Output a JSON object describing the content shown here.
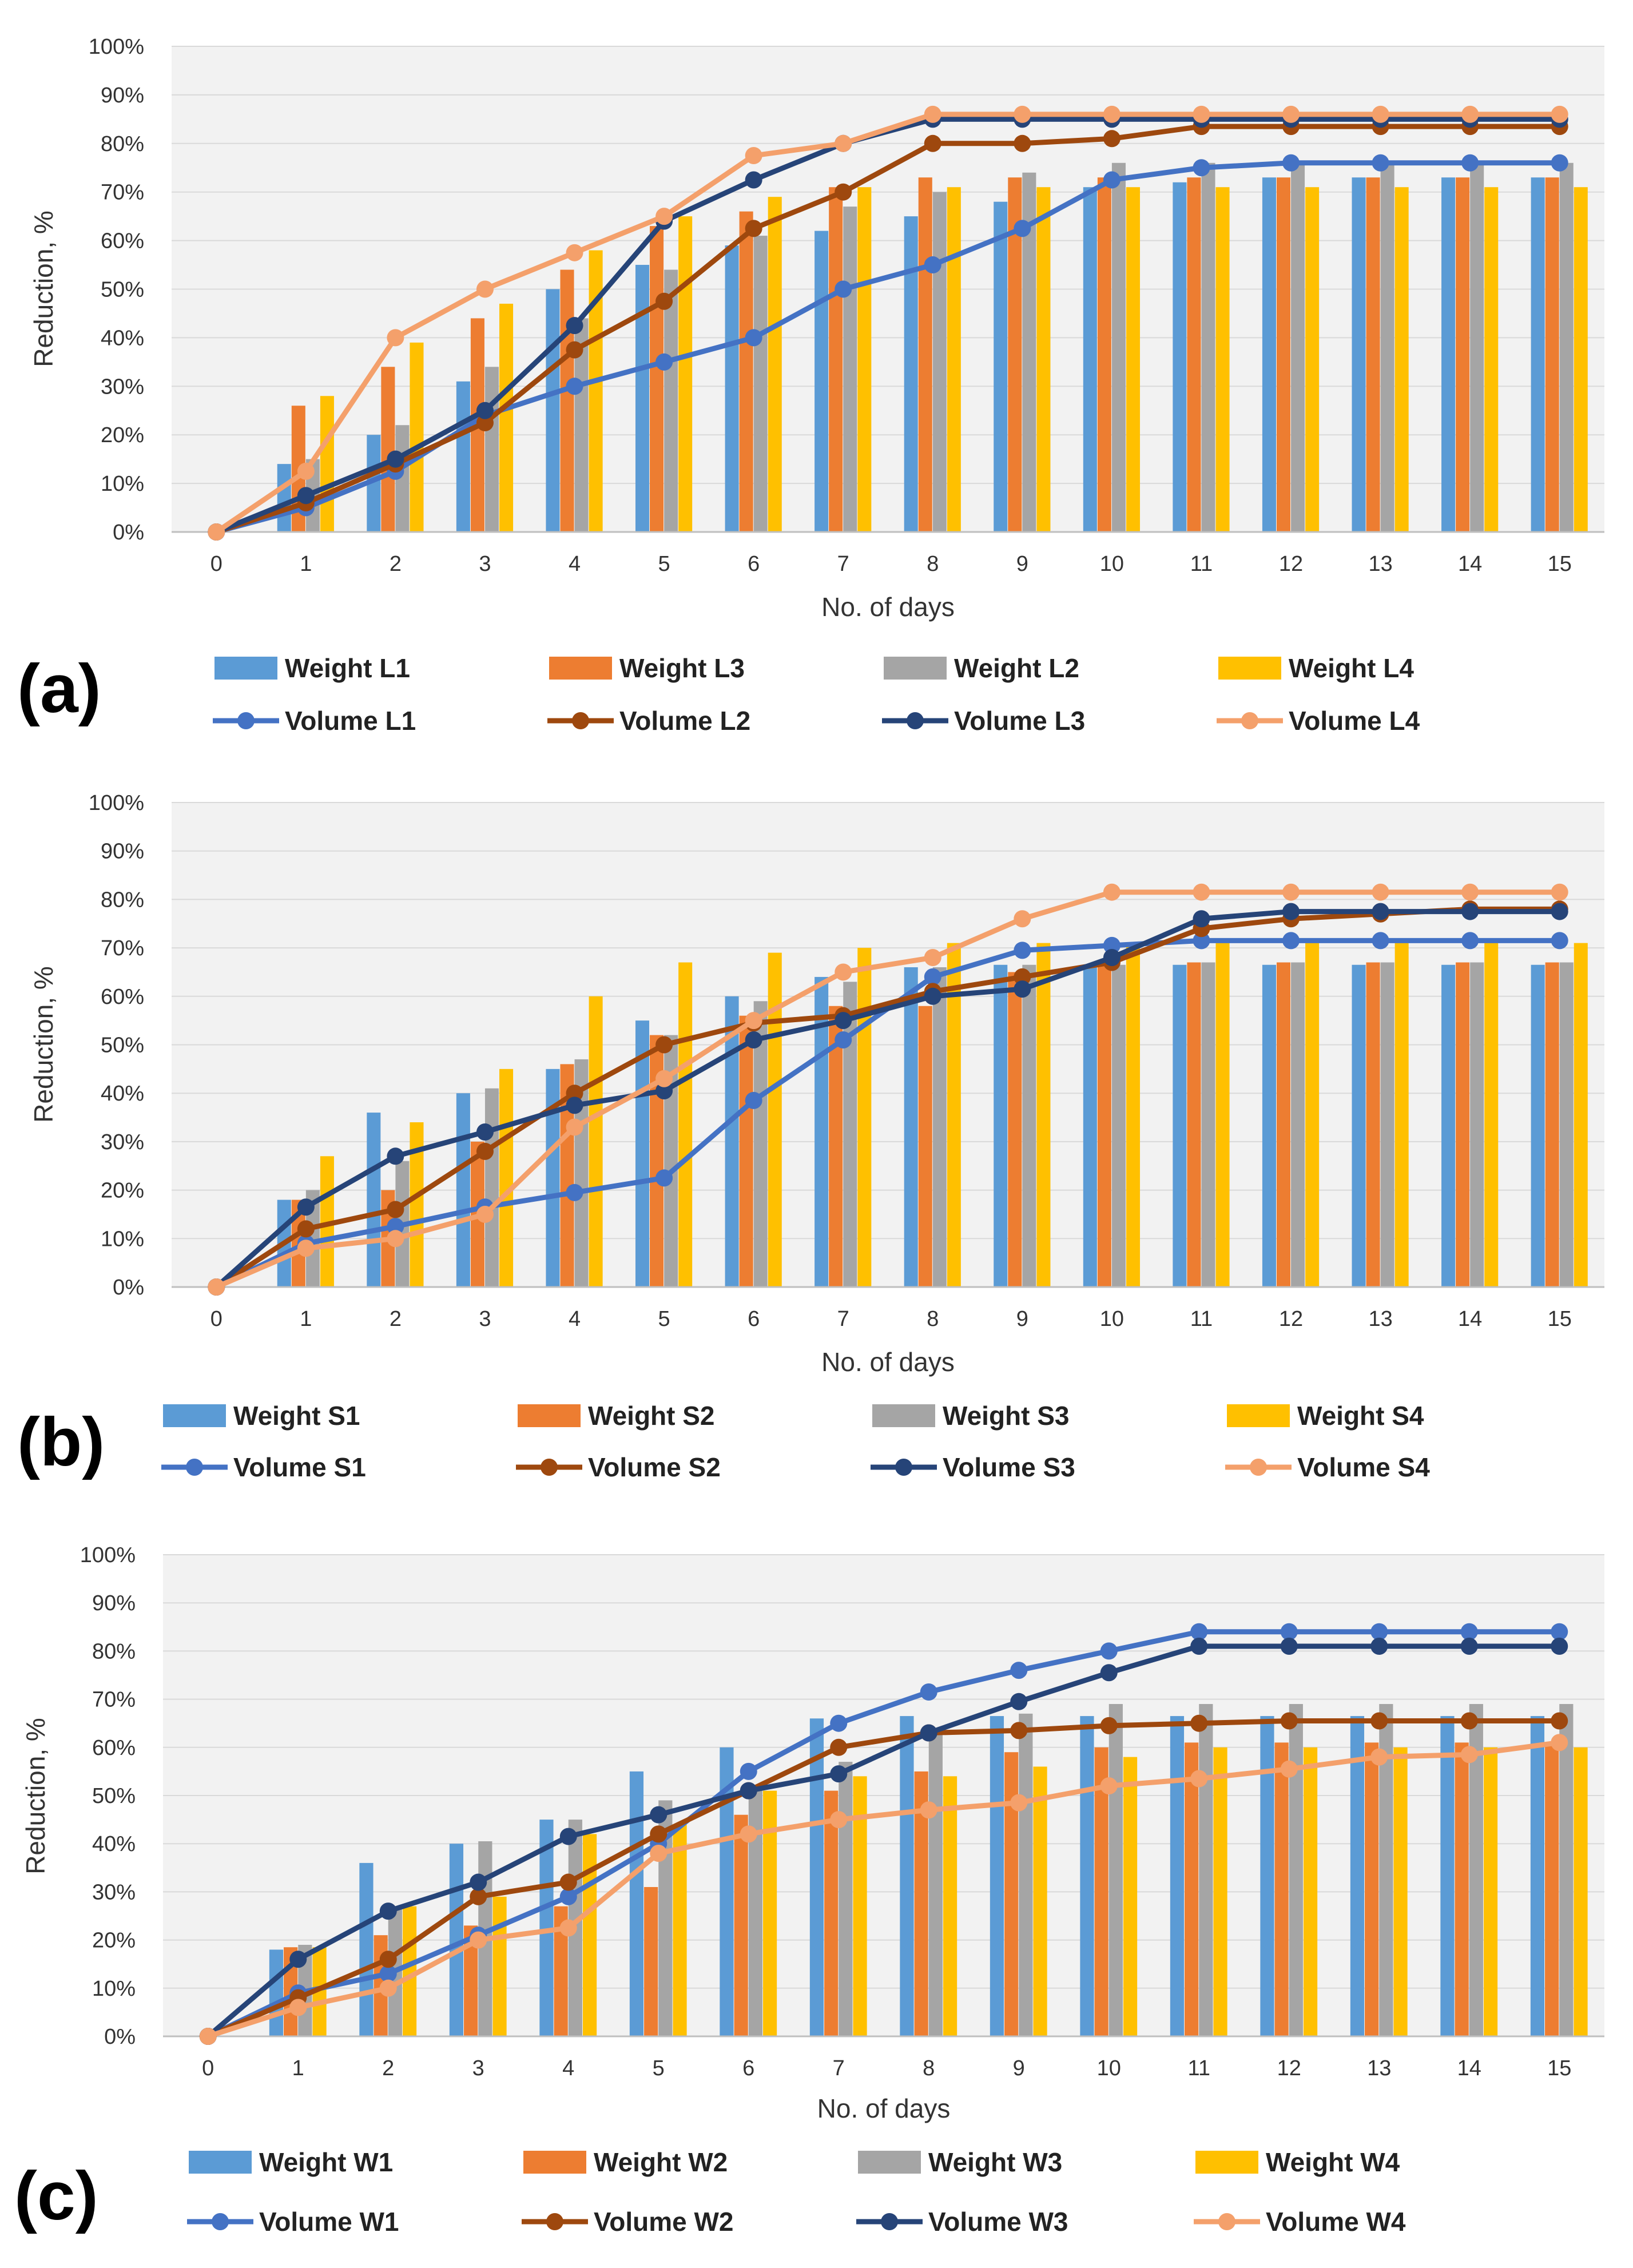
{
  "figure": {
    "panels": [
      "(a)",
      "(b)",
      "(c)"
    ]
  },
  "chart_data": [
    {
      "type": "bar",
      "panel_label": "(a)",
      "title": "",
      "xlabel": "No. of days",
      "ylabel": "Reduction, %",
      "ylim": [
        0,
        100
      ],
      "grid": true,
      "legend_position": "bottom",
      "categories": [
        "0",
        "1",
        "2",
        "3",
        "4",
        "5",
        "6",
        "7",
        "8",
        "9",
        "10",
        "11",
        "12",
        "13",
        "14",
        "15"
      ],
      "y_ticks": [
        "0%",
        "10%",
        "20%",
        "30%",
        "40%",
        "50%",
        "60%",
        "70%",
        "80%",
        "90%",
        "100%"
      ],
      "series": [
        {
          "name": "Weight  L1",
          "kind": "bar",
          "color": "#5B9BD5",
          "values": [
            0,
            14,
            20,
            31,
            50,
            55,
            59,
            62,
            65,
            68,
            71,
            72,
            73,
            73,
            73,
            73
          ]
        },
        {
          "name": "Weight L3",
          "kind": "bar",
          "color": "#ED7D31",
          "values": [
            0,
            26,
            34,
            44,
            54,
            63,
            66,
            71,
            73,
            73,
            73,
            73,
            73,
            73,
            73,
            73
          ]
        },
        {
          "name": "Weight  L2",
          "kind": "bar",
          "color": "#A5A5A5",
          "values": [
            0,
            15,
            22,
            34,
            44,
            54,
            61,
            67,
            70,
            74,
            76,
            76,
            76,
            76,
            76,
            76
          ]
        },
        {
          "name": "Weight  L4",
          "kind": "bar",
          "color": "#FFC000",
          "values": [
            0,
            28,
            39,
            47,
            58,
            65,
            69,
            71,
            71,
            71,
            71,
            71,
            71,
            71,
            71,
            71
          ]
        },
        {
          "name": "Volume  L1",
          "kind": "line",
          "color": "#4472C4",
          "values": [
            0,
            5,
            12.5,
            24,
            30,
            35,
            40,
            50,
            55,
            62.5,
            72.5,
            75,
            76,
            76,
            76,
            76
          ]
        },
        {
          "name": "Volume L2",
          "kind": "line",
          "color": "#9E480E",
          "values": [
            0,
            6,
            14,
            22.5,
            37.5,
            47.5,
            62.5,
            70,
            80,
            80,
            81,
            83.5,
            83.5,
            83.5,
            83.5,
            83.5
          ]
        },
        {
          "name": "Volume L3",
          "kind": "line",
          "color": "#264478",
          "values": [
            0,
            7.5,
            15,
            25,
            42.5,
            64,
            72.5,
            80,
            85,
            85,
            85,
            85,
            85,
            85,
            85,
            85
          ]
        },
        {
          "name": "Volume L4",
          "kind": "line",
          "color": "#F4A06B",
          "values": [
            0,
            12.5,
            40,
            50,
            57.5,
            65,
            77.5,
            80,
            86,
            86,
            86,
            86,
            86,
            86,
            86,
            86
          ]
        }
      ]
    },
    {
      "type": "bar",
      "panel_label": "(b)",
      "title": "",
      "xlabel": "No. of days",
      "ylabel": "Reduction, %",
      "ylim": [
        0,
        100
      ],
      "grid": true,
      "legend_position": "bottom",
      "categories": [
        "0",
        "1",
        "2",
        "3",
        "4",
        "5",
        "6",
        "7",
        "8",
        "9",
        "10",
        "11",
        "12",
        "13",
        "14",
        "15"
      ],
      "y_ticks": [
        "0%",
        "10%",
        "20%",
        "30%",
        "40%",
        "50%",
        "60%",
        "70%",
        "80%",
        "90%",
        "100%"
      ],
      "series": [
        {
          "name": "Weight S1",
          "kind": "bar",
          "color": "#5B9BD5",
          "values": [
            0,
            18,
            36,
            40,
            45,
            55,
            60,
            64,
            66,
            66.5,
            66.5,
            66.5,
            66.5,
            66.5,
            66.5,
            66.5
          ]
        },
        {
          "name": "Weight S2",
          "kind": "bar",
          "color": "#ED7D31",
          "values": [
            0,
            18,
            20,
            30,
            46,
            52,
            56,
            58,
            58,
            65,
            67,
            67,
            67,
            67,
            67,
            67
          ]
        },
        {
          "name": "Weight  S3",
          "kind": "bar",
          "color": "#A5A5A5",
          "values": [
            0,
            20,
            26,
            41,
            47,
            52,
            59,
            63,
            66,
            66.5,
            66.5,
            67,
            67,
            67,
            67,
            67
          ]
        },
        {
          "name": "Weight S4",
          "kind": "bar",
          "color": "#FFC000",
          "values": [
            0,
            27,
            34,
            45,
            60,
            67,
            69,
            70,
            71,
            71,
            71,
            71,
            71,
            71,
            71,
            71
          ]
        },
        {
          "name": "Volume S1",
          "kind": "line",
          "color": "#4472C4",
          "values": [
            0,
            9,
            12.5,
            16.5,
            19.5,
            22.5,
            38.5,
            51,
            64,
            69.5,
            70.5,
            71.5,
            71.5,
            71.5,
            71.5,
            71.5
          ]
        },
        {
          "name": "Volume S2",
          "kind": "line",
          "color": "#9E480E",
          "values": [
            0,
            12,
            16,
            28,
            40,
            50,
            54.5,
            56,
            61,
            64,
            67,
            74,
            76,
            77,
            78,
            78
          ]
        },
        {
          "name": "Volume S3",
          "kind": "line",
          "color": "#264478",
          "values": [
            0,
            16.5,
            27,
            32,
            37.5,
            40.5,
            51,
            55,
            60,
            61.5,
            68,
            76,
            77.5,
            77.5,
            77.5,
            77.5
          ]
        },
        {
          "name": "Volume S4",
          "kind": "line",
          "color": "#F4A06B",
          "values": [
            0,
            8,
            10,
            15,
            33,
            43,
            55,
            65,
            68,
            76,
            81.5,
            81.5,
            81.5,
            81.5,
            81.5,
            81.5
          ]
        }
      ]
    },
    {
      "type": "bar",
      "panel_label": "(c)",
      "title": "",
      "xlabel": "No. of days",
      "ylabel": "Reduction, %",
      "ylim": [
        0,
        100
      ],
      "grid": true,
      "legend_position": "bottom",
      "categories": [
        "0",
        "1",
        "2",
        "3",
        "4",
        "5",
        "6",
        "7",
        "8",
        "9",
        "10",
        "11",
        "12",
        "13",
        "14",
        "15"
      ],
      "y_ticks": [
        "0%",
        "10%",
        "20%",
        "30%",
        "40%",
        "50%",
        "60%",
        "70%",
        "80%",
        "90%",
        "100%"
      ],
      "series": [
        {
          "name": "Weight W1",
          "kind": "bar",
          "color": "#5B9BD5",
          "values": [
            0,
            18,
            36,
            40,
            45,
            55,
            60,
            66,
            66.5,
            66.5,
            66.5,
            66.5,
            66.5,
            66.5,
            66.5,
            66.5
          ]
        },
        {
          "name": "Weight W2",
          "kind": "bar",
          "color": "#ED7D31",
          "values": [
            0,
            18.5,
            21,
            23,
            27,
            31,
            46,
            51,
            55,
            59,
            60,
            61,
            61,
            61,
            61,
            61
          ]
        },
        {
          "name": "Weight W3",
          "kind": "bar",
          "color": "#A5A5A5",
          "values": [
            0,
            19,
            26.5,
            40.5,
            45,
            49,
            52,
            57,
            63,
            67,
            69,
            69,
            69,
            69,
            69,
            69
          ]
        },
        {
          "name": "Weight W4",
          "kind": "bar",
          "color": "#FFC000",
          "values": [
            0,
            18.5,
            27,
            29,
            42,
            44,
            51,
            54,
            54,
            56,
            58,
            60,
            60,
            60,
            60,
            60
          ]
        },
        {
          "name": "Volume W1",
          "kind": "line",
          "color": "#4472C4",
          "values": [
            0,
            9,
            13,
            21,
            29,
            40,
            55,
            65,
            71.5,
            76,
            80,
            84,
            84,
            84,
            84,
            84
          ]
        },
        {
          "name": "Volume W2",
          "kind": "line",
          "color": "#9E480E",
          "values": [
            0,
            8,
            16,
            29,
            32,
            42,
            51,
            60,
            63,
            63.5,
            64.5,
            65,
            65.5,
            65.5,
            65.5,
            65.5
          ]
        },
        {
          "name": "Volume W3",
          "kind": "line",
          "color": "#264478",
          "values": [
            0,
            16,
            26,
            32,
            41.5,
            46,
            51,
            54.5,
            63,
            69.5,
            75.5,
            81,
            81,
            81,
            81,
            81
          ]
        },
        {
          "name": "Volume W4",
          "kind": "line",
          "color": "#F4A06B",
          "values": [
            0,
            6,
            10,
            20,
            22.5,
            38,
            42,
            45,
            47,
            48.5,
            52,
            53.5,
            55.5,
            58,
            58.5,
            61
          ]
        }
      ]
    }
  ]
}
